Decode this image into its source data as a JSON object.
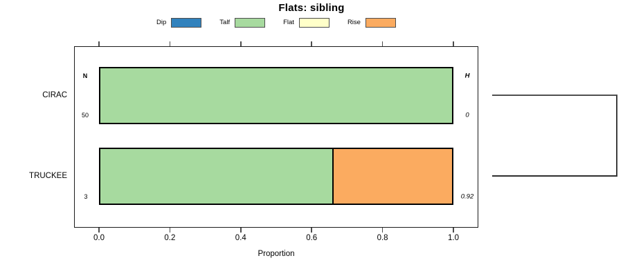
{
  "title": "Flats: sibling",
  "colors": {
    "dip": "#3182bd",
    "talf": "#a7da9f",
    "flat": "#ffffc9",
    "rise": "#fbab60",
    "bar_border": "#000000",
    "box_border": "#1a1a1a",
    "tick": "#4d4d4d",
    "tree_line": "#454545"
  },
  "legend": {
    "items": [
      {
        "label": "Dip",
        "color_key": "dip"
      },
      {
        "label": "Talf",
        "color_key": "talf"
      },
      {
        "label": "Flat",
        "color_key": "flat"
      },
      {
        "label": "Rise",
        "color_key": "rise"
      }
    ]
  },
  "axis": {
    "tick_labels": [
      "0.0",
      "0.2",
      "0.4",
      "0.6",
      "0.8",
      "1.0"
    ],
    "xlabel": "Proportion"
  },
  "columns": {
    "n_header": "N",
    "h_header": "H"
  },
  "rows": [
    {
      "label": "CIRAC",
      "n": "50",
      "h": "0",
      "segments": [
        {
          "state": "Talf",
          "color_key": "talf",
          "value": 1.0
        }
      ]
    },
    {
      "label": "TRUCKEE",
      "n": "3",
      "h": "0.92",
      "segments": [
        {
          "state": "Talf",
          "color_key": "talf",
          "value": 0.664
        },
        {
          "state": "Rise",
          "color_key": "rise",
          "value": 0.336
        }
      ]
    }
  ],
  "chart_data": {
    "type": "bar",
    "subtype": "horizontal_stacked_proportion",
    "title": "Flats: sibling",
    "xlabel": "Proportion",
    "xlim": [
      0,
      1
    ],
    "xticks": [
      0.0,
      0.2,
      0.4,
      0.6,
      0.8,
      1.0
    ],
    "categories": [
      "CIRAC",
      "TRUCKEE"
    ],
    "series": [
      {
        "name": "Dip",
        "color": "#3182bd",
        "values": [
          0,
          0
        ]
      },
      {
        "name": "Talf",
        "color": "#a7da9f",
        "values": [
          1.0,
          0.66
        ]
      },
      {
        "name": "Flat",
        "color": "#ffffc9",
        "values": [
          0,
          0
        ]
      },
      {
        "name": "Rise",
        "color": "#fbab60",
        "values": [
          0,
          0.34
        ]
      }
    ],
    "annotations": {
      "N": [
        "50",
        "3"
      ],
      "H": [
        "0",
        "0.92"
      ]
    },
    "legend_position": "top",
    "grid": false,
    "notes": "Right-side bracket joins the CIRAC and TRUCKEE rows (cluster tree)."
  }
}
